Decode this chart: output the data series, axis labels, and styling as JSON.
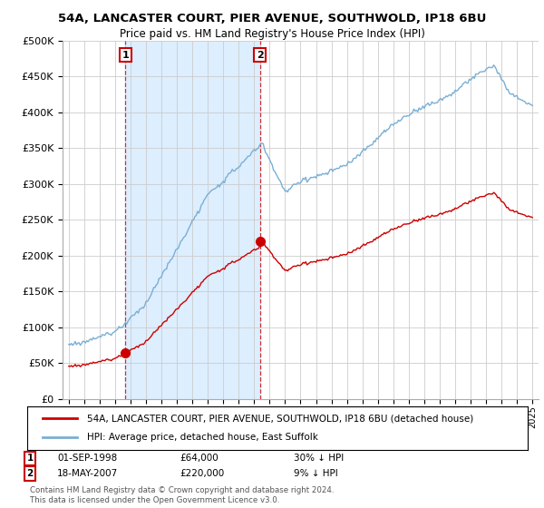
{
  "title_line1": "54A, LANCASTER COURT, PIER AVENUE, SOUTHWOLD, IP18 6BU",
  "title_line2": "Price paid vs. HM Land Registry's House Price Index (HPI)",
  "hpi_color": "#7aafd4",
  "sale_color": "#cc0000",
  "shade_color": "#ddeeff",
  "sale1_date": 1998.67,
  "sale1_price": 64000,
  "sale2_date": 2007.38,
  "sale2_price": 220000,
  "legend_label1": "54A, LANCASTER COURT, PIER AVENUE, SOUTHWOLD, IP18 6BU (detached house)",
  "legend_label2": "HPI: Average price, detached house, East Suffolk",
  "footer": "Contains HM Land Registry data © Crown copyright and database right 2024.\nThis data is licensed under the Open Government Licence v3.0.",
  "background_color": "#ffffff",
  "grid_color": "#cccccc"
}
